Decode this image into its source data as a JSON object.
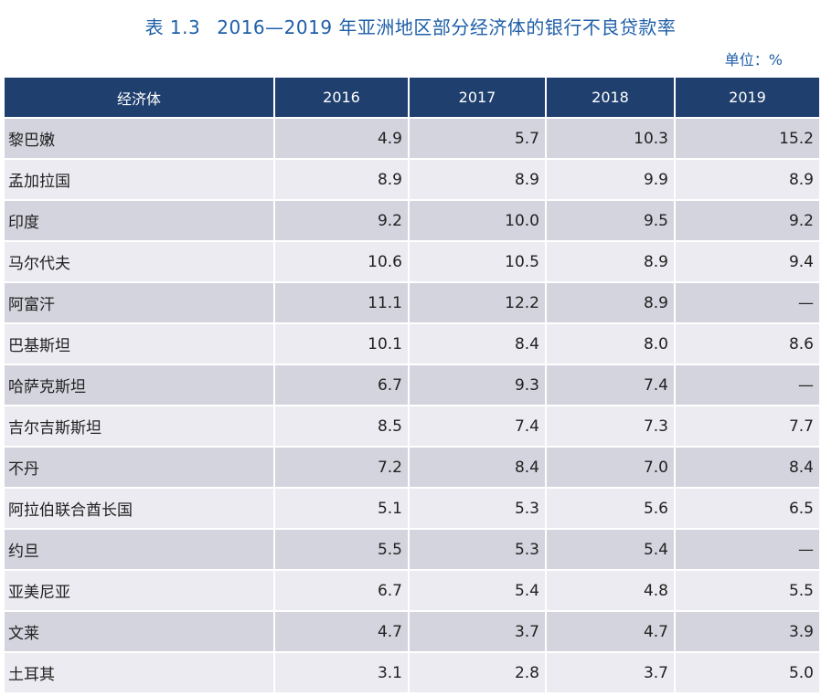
{
  "title": {
    "number": "表 1.3",
    "text": "2016—2019 年亚洲地区部分经济体的银行不良贷款率"
  },
  "unit": "单位：%",
  "table": {
    "headers": [
      "经济体",
      "2016",
      "2017",
      "2018",
      "2019"
    ],
    "rows": [
      [
        "黎巴嫩",
        "4.9",
        "5.7",
        "10.3",
        "15.2"
      ],
      [
        "孟加拉国",
        "8.9",
        "8.9",
        "9.9",
        "8.9"
      ],
      [
        "印度",
        "9.2",
        "10.0",
        "9.5",
        "9.2"
      ],
      [
        "马尔代夫",
        "10.6",
        "10.5",
        "8.9",
        "9.4"
      ],
      [
        "阿富汗",
        "11.1",
        "12.2",
        "8.9",
        "—"
      ],
      [
        "巴基斯坦",
        "10.1",
        "8.4",
        "8.0",
        "8.6"
      ],
      [
        "哈萨克斯坦",
        "6.7",
        "9.3",
        "7.4",
        "—"
      ],
      [
        "吉尔吉斯斯坦",
        "8.5",
        "7.4",
        "7.3",
        "7.7"
      ],
      [
        "不丹",
        "7.2",
        "8.4",
        "7.0",
        "8.4"
      ],
      [
        "阿拉伯联合酋长国",
        "5.1",
        "5.3",
        "5.6",
        "6.5"
      ],
      [
        "约旦",
        "5.5",
        "5.3",
        "5.4",
        "—"
      ],
      [
        "亚美尼亚",
        "6.7",
        "5.4",
        "4.8",
        "5.5"
      ],
      [
        "文莱",
        "4.7",
        "3.7",
        "4.7",
        "3.9"
      ],
      [
        "土耳其",
        "3.1",
        "2.8",
        "3.7",
        "5.0"
      ]
    ]
  },
  "colors": {
    "title": "#1f5fa8",
    "header_bg": "#1f3f6e",
    "row_dark": "#d4d4df",
    "row_light": "#ebebf1"
  }
}
